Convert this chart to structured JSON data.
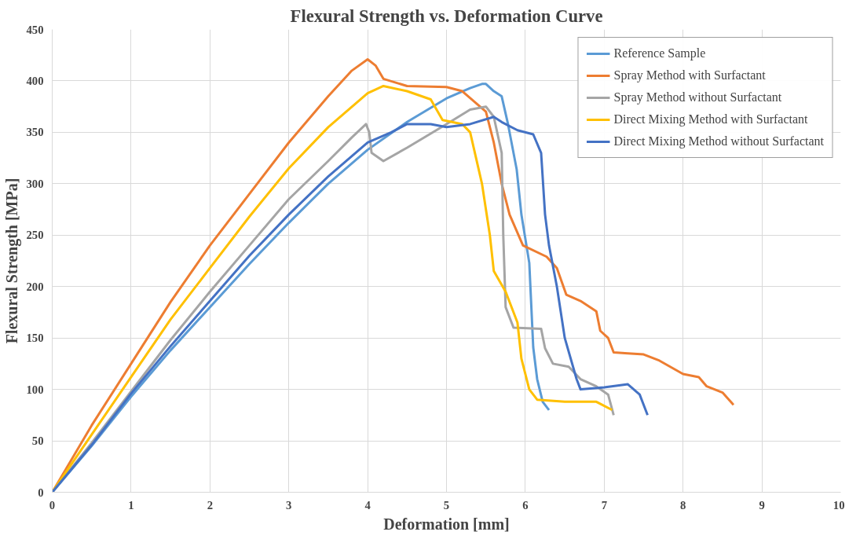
{
  "chart_data": {
    "type": "line",
    "title": "Flexural Strength vs. Deformation Curve",
    "xlabel": "Deformation [mm]",
    "ylabel": "Flexural Strength [MPa]",
    "xlim": [
      0,
      10
    ],
    "xticks": [
      0,
      1,
      2,
      3,
      4,
      5,
      6,
      7,
      8,
      9,
      10
    ],
    "ylim": [
      0,
      450
    ],
    "yticks": [
      0,
      50,
      100,
      150,
      200,
      250,
      300,
      350,
      400,
      450
    ],
    "grid": true,
    "legend": "top right",
    "marker": "none",
    "line_style": "solid",
    "series": [
      {
        "name": "Reference Sample",
        "color": "#5b9bd5",
        "x": [
          0,
          0.5,
          1,
          1.5,
          2,
          2.5,
          3,
          3.5,
          4,
          4.5,
          5,
          5.3,
          5.45,
          5.5,
          5.6,
          5.7,
          5.78,
          5.89,
          5.95,
          6.05,
          6.1,
          6.15,
          6.22,
          6.3
        ],
        "values": [
          0,
          45,
          93,
          138,
          180,
          222,
          262,
          300,
          333,
          360,
          383,
          393,
          397,
          397,
          390,
          385,
          358,
          314,
          270,
          223,
          141,
          110,
          88,
          80
        ]
      },
      {
        "name": "Spray Method with Surfactant",
        "color": "#ed7d31",
        "x": [
          0,
          0.5,
          1,
          1.5,
          2,
          2.5,
          3,
          3.5,
          3.8,
          4,
          4.1,
          4.2,
          4.5,
          5,
          5.2,
          5.5,
          5.6,
          5.7,
          5.8,
          5.97,
          6.27,
          6.4,
          6.52,
          6.7,
          6.9,
          6.95,
          7.05,
          7.12,
          7.3,
          7.5,
          7.7,
          8,
          8.2,
          8.3,
          8.5,
          8.64
        ],
        "values": [
          0,
          65,
          125,
          185,
          240,
          290,
          340,
          385,
          410,
          421,
          415,
          402,
          395,
          394,
          390,
          370,
          340,
          300,
          270,
          240,
          229,
          218,
          192,
          186,
          176,
          157,
          150,
          136,
          135,
          134,
          128,
          115,
          112,
          103,
          97,
          85
        ]
      },
      {
        "name": "Spray Method without Surfactant",
        "color": "#a5a5a5",
        "x": [
          0,
          0.5,
          1,
          1.5,
          2,
          2.5,
          3,
          3.5,
          3.8,
          3.98,
          4.02,
          4.05,
          4.2,
          4.5,
          5,
          5.3,
          5.5,
          5.6,
          5.7,
          5.72,
          5.75,
          5.85,
          6.2,
          6.25,
          6.35,
          6.55,
          6.7,
          6.9,
          7.05,
          7.12
        ],
        "values": [
          0,
          48,
          98,
          148,
          195,
          240,
          285,
          322,
          345,
          358,
          350,
          330,
          322,
          335,
          358,
          372,
          375,
          365,
          330,
          250,
          180,
          160,
          159,
          140,
          125,
          122,
          110,
          103,
          95,
          75
        ]
      },
      {
        "name": "Direct Mixing Method with Surfactant",
        "color": "#ffc000",
        "x": [
          0,
          0.5,
          1,
          1.5,
          2,
          2.5,
          3,
          3.5,
          4,
          4.2,
          4.5,
          4.8,
          4.95,
          5.2,
          5.3,
          5.45,
          5.55,
          5.6,
          5.75,
          5.9,
          5.95,
          6.05,
          6.15,
          6.5,
          6.9,
          7.1
        ],
        "values": [
          0,
          56,
          112,
          168,
          218,
          268,
          315,
          355,
          388,
          395,
          390,
          382,
          362,
          358,
          350,
          300,
          250,
          215,
          195,
          165,
          130,
          100,
          90,
          88,
          88,
          80
        ]
      },
      {
        "name": "Direct Mixing Method without Surfactant",
        "color": "#4472c4",
        "x": [
          0,
          0.5,
          1,
          1.5,
          2,
          2.5,
          3,
          3.5,
          4,
          4.3,
          4.5,
          4.8,
          5,
          5.3,
          5.6,
          5.7,
          5.9,
          6.1,
          6.2,
          6.25,
          6.3,
          6.4,
          6.5,
          6.65,
          6.7,
          7,
          7.3,
          7.45,
          7.55
        ],
        "values": [
          0,
          46,
          96,
          142,
          186,
          230,
          270,
          307,
          340,
          350,
          358,
          358,
          355,
          358,
          365,
          360,
          352,
          348,
          330,
          270,
          240,
          200,
          150,
          110,
          100,
          102,
          105,
          95,
          75
        ]
      }
    ]
  }
}
